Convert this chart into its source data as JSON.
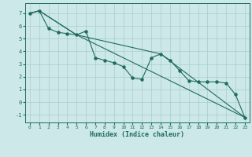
{
  "xlabel": "Humidex (Indice chaleur)",
  "background_color": "#cce8e8",
  "grid_color": "#aacccc",
  "line_color": "#1e6b60",
  "xlim": [
    -0.5,
    23.5
  ],
  "ylim": [
    -1.6,
    7.8
  ],
  "yticks": [
    -1,
    0,
    1,
    2,
    3,
    4,
    5,
    6,
    7
  ],
  "xticks": [
    0,
    1,
    2,
    3,
    4,
    5,
    6,
    7,
    8,
    9,
    10,
    11,
    12,
    13,
    14,
    15,
    16,
    17,
    18,
    19,
    20,
    21,
    22,
    23
  ],
  "series1_x": [
    0,
    1,
    2,
    3,
    4,
    5,
    6,
    7,
    8,
    9,
    10,
    11,
    12,
    13,
    14,
    15,
    16,
    17,
    18,
    19,
    20,
    21,
    22,
    23
  ],
  "series1_y": [
    7.0,
    7.2,
    5.8,
    5.5,
    5.4,
    5.3,
    5.6,
    3.5,
    3.3,
    3.1,
    2.8,
    1.9,
    1.8,
    3.5,
    3.8,
    3.3,
    2.5,
    1.7,
    1.6,
    1.6,
    1.6,
    1.5,
    0.6,
    -1.2
  ],
  "series2_x": [
    0,
    1,
    5,
    23
  ],
  "series2_y": [
    7.0,
    7.2,
    5.3,
    -1.2
  ],
  "series3_x": [
    0,
    1,
    5,
    14,
    23
  ],
  "series3_y": [
    7.0,
    7.2,
    5.3,
    3.8,
    -1.2
  ]
}
